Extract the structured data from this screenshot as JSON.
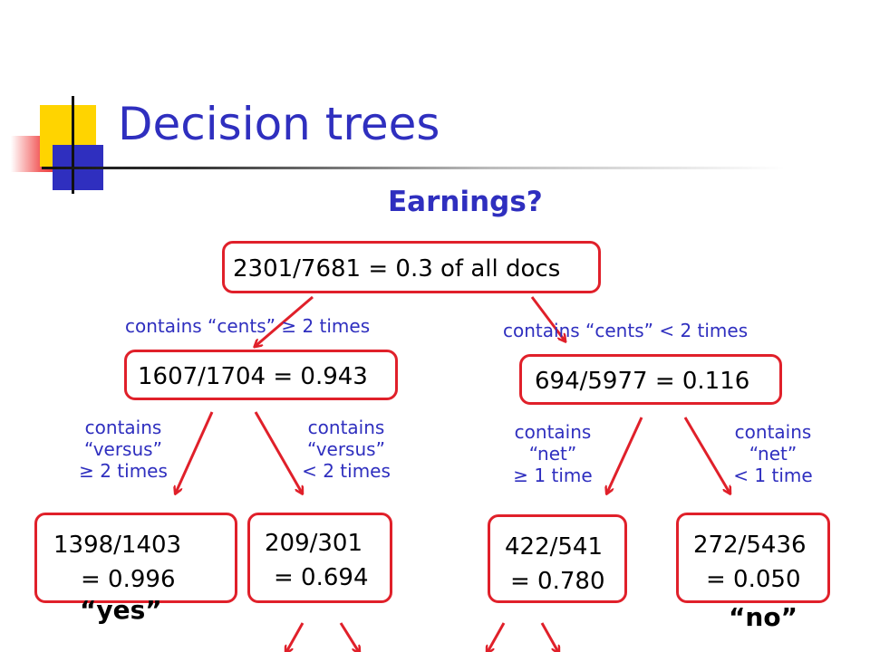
{
  "slide": {
    "title": "Decision trees",
    "subtitle": "Earnings?"
  },
  "tree": {
    "root": {
      "text": "2301/7681 = 0.3 of all docs"
    },
    "edges": {
      "root_left": "contains “cents” ≥ 2 times",
      "root_right": "contains “cents” < 2 times",
      "left_left": [
        "contains",
        "“versus”",
        "≥ 2 times"
      ],
      "left_right": [
        "contains",
        "“versus”",
        "< 2 times"
      ],
      "right_left": [
        "contains",
        "“net”",
        "≥ 1 time"
      ],
      "right_right": [
        "contains",
        "“net”",
        "< 1 time"
      ]
    },
    "internal_left": {
      "text": "1607/1704 = 0.943"
    },
    "internal_right": {
      "text": "694/5977 = 0.116"
    },
    "leaves": [
      {
        "line1": "1398/1403",
        "line2": "= 0.996",
        "label": "“yes”"
      },
      {
        "line1": "209/301",
        "line2": "= 0.694",
        "label": ""
      },
      {
        "line1": "422/541",
        "line2": "= 0.780",
        "label": ""
      },
      {
        "line1": "272/5436",
        "line2": "= 0.050",
        "label": "“no”"
      }
    ]
  },
  "colors": {
    "accent_blue": "#2f2fbf",
    "node_border_red": "#e0202a"
  }
}
